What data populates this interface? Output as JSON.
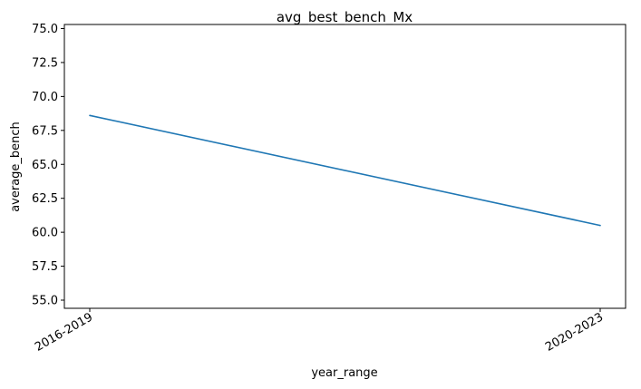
{
  "chart_data": {
    "type": "line",
    "title": "avg_best_bench_Mx",
    "xlabel": "year_range",
    "ylabel": "average_bench",
    "categories": [
      "2016-2019",
      "2020-2023"
    ],
    "series": [
      {
        "values": [
          68.6,
          60.5
        ]
      }
    ],
    "ylim": [
      54.4,
      75.3
    ],
    "yticks": [
      "55.0",
      "57.5",
      "60.0",
      "62.5",
      "65.0",
      "67.5",
      "70.0",
      "72.5",
      "75.0"
    ],
    "grid": false,
    "line_color": "#1f77b4"
  }
}
